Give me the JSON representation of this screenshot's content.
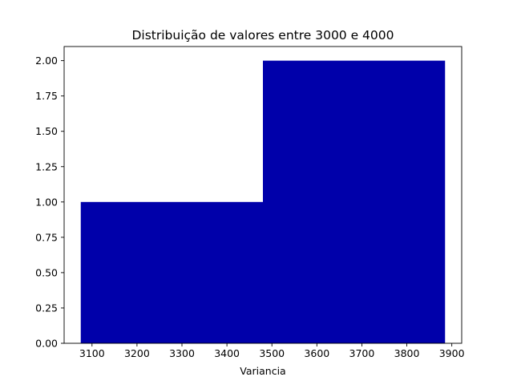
{
  "chart_data": {
    "type": "bar",
    "title": "Distribuição de valores entre 3000 e 4000",
    "xlabel": "Variancia",
    "ylabel": "",
    "bins": [
      {
        "x0": 3075,
        "x1": 3480,
        "count": 1
      },
      {
        "x0": 3480,
        "x1": 3885,
        "count": 2
      }
    ],
    "xlim": [
      3038,
      3922
    ],
    "ylim": [
      0,
      2.1
    ],
    "xticks": [
      {
        "value": 3100,
        "label": "3100"
      },
      {
        "value": 3200,
        "label": "3200"
      },
      {
        "value": 3300,
        "label": "3300"
      },
      {
        "value": 3400,
        "label": "3400"
      },
      {
        "value": 3500,
        "label": "3500"
      },
      {
        "value": 3600,
        "label": "3600"
      },
      {
        "value": 3700,
        "label": "3700"
      },
      {
        "value": 3800,
        "label": "3800"
      },
      {
        "value": 3900,
        "label": "3900"
      }
    ],
    "yticks": [
      {
        "value": 0.0,
        "label": "0.00"
      },
      {
        "value": 0.25,
        "label": "0.25"
      },
      {
        "value": 0.5,
        "label": "0.50"
      },
      {
        "value": 0.75,
        "label": "0.75"
      },
      {
        "value": 1.0,
        "label": "1.00"
      },
      {
        "value": 1.25,
        "label": "1.25"
      },
      {
        "value": 1.5,
        "label": "1.50"
      },
      {
        "value": 1.75,
        "label": "1.75"
      },
      {
        "value": 2.0,
        "label": "2.00"
      }
    ],
    "grid": false,
    "colors": {
      "bar": "#0000aa",
      "axis": "#000000"
    }
  }
}
